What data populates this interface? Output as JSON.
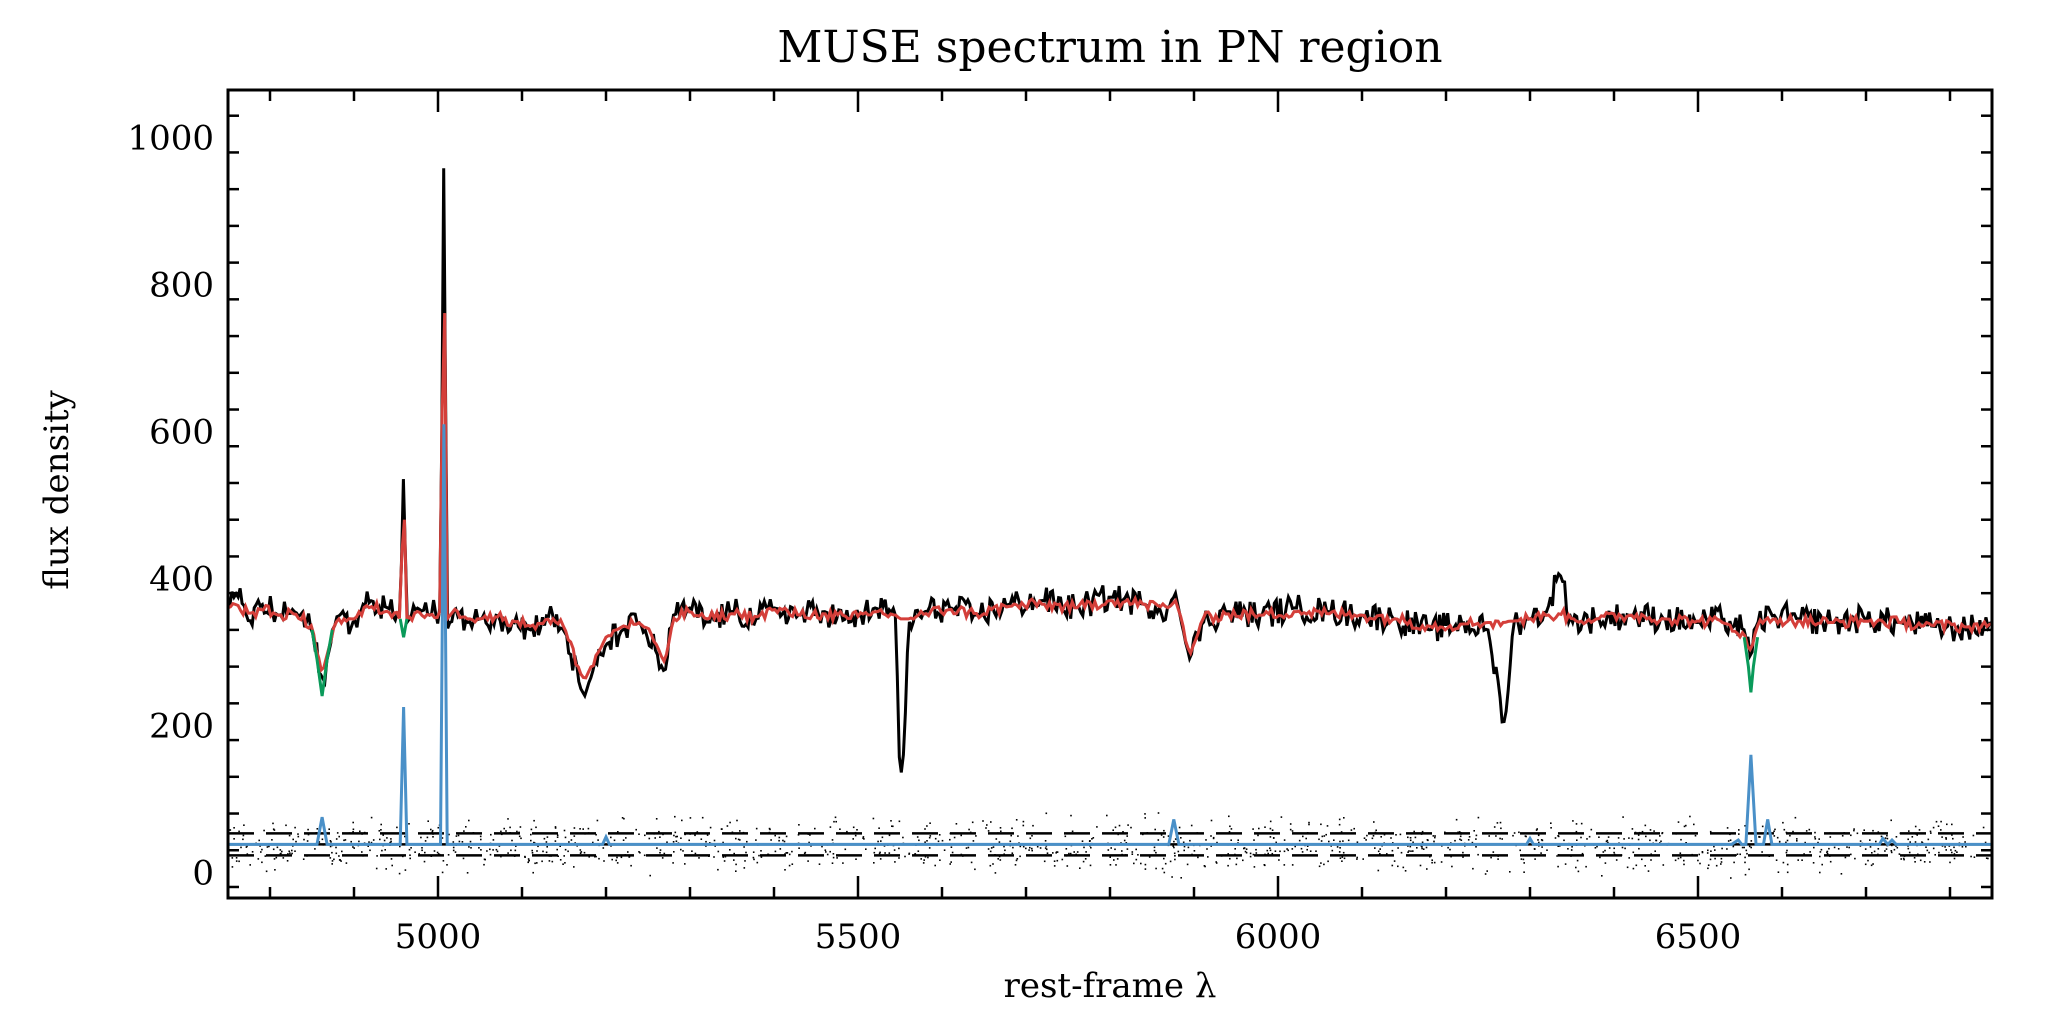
{
  "chart_data": {
    "type": "line",
    "title": "MUSE spectrum in PN region",
    "xlabel": "rest-frame λ",
    "ylabel": "flux density",
    "xlim": [
      4750,
      6850
    ],
    "ylim": [
      -35,
      1065
    ],
    "x_ticks": [
      5000,
      5500,
      6000,
      6500
    ],
    "x_tick_labels": [
      "5000",
      "5500",
      "6000",
      "6500"
    ],
    "y_ticks": [
      0,
      200,
      400,
      600,
      800,
      1000
    ],
    "y_tick_labels": [
      "0",
      "200",
      "400",
      "600",
      "800",
      "1000"
    ],
    "grid": false,
    "legend": "none",
    "colors": {
      "observed": "#000000",
      "model": "#d43f3a",
      "gas_absorption_component": "#0a9a5a",
      "emission_lines": "#4a90c8",
      "residuals": "#000000"
    },
    "series": [
      {
        "key": "observed",
        "style": "black histogram",
        "x": [
          4750,
          4760,
          4775,
          4790,
          4810,
          4830,
          4850,
          4862,
          4870,
          4880,
          4900,
          4920,
          4940,
          4955,
          4959,
          4963,
          4975,
          4990,
          5003,
          5007,
          5011,
          5020,
          5035,
          5050,
          5070,
          5090,
          5110,
          5130,
          5150,
          5170,
          5175,
          5180,
          5200,
          5220,
          5240,
          5260,
          5270,
          5280,
          5300,
          5320,
          5350,
          5380,
          5400,
          5430,
          5460,
          5490,
          5520,
          5545,
          5550,
          5555,
          5560,
          5580,
          5610,
          5640,
          5680,
          5720,
          5760,
          5800,
          5840,
          5870,
          5878,
          5885,
          5895,
          5910,
          5940,
          5980,
          6020,
          6060,
          6100,
          6140,
          6180,
          6220,
          6250,
          6270,
          6275,
          6280,
          6300,
          6320,
          6335,
          6350,
          6380,
          6420,
          6460,
          6500,
          6530,
          6555,
          6563,
          6570,
          6590,
          6620,
          6660,
          6700,
          6740,
          6780,
          6820,
          6850
        ],
        "y": [
          360,
          380,
          340,
          365,
          350,
          355,
          330,
          260,
          300,
          350,
          340,
          370,
          360,
          350,
          545,
          340,
          360,
          350,
          360,
          990,
          330,
          360,
          340,
          345,
          350,
          340,
          330,
          350,
          330,
          250,
          240,
          260,
          310,
          330,
          340,
          300,
          270,
          350,
          360,
          340,
          355,
          345,
          360,
          350,
          355,
          340,
          360,
          350,
          120,
          170,
          340,
          355,
          360,
          350,
          365,
          370,
          360,
          375,
          365,
          360,
          380,
          340,
          290,
          340,
          355,
          350,
          360,
          355,
          350,
          345,
          330,
          340,
          330,
          200,
          260,
          340,
          345,
          355,
          410,
          340,
          345,
          350,
          345,
          340,
          345,
          330,
          290,
          340,
          350,
          345,
          340,
          345,
          340,
          335,
          330,
          340
        ]
      },
      {
        "key": "model",
        "style": "red line",
        "x": [
          4750,
          4760,
          4775,
          4790,
          4810,
          4830,
          4850,
          4862,
          4870,
          4880,
          4900,
          4920,
          4940,
          4955,
          4959,
          4963,
          4975,
          4990,
          5003,
          5007,
          5011,
          5020,
          5035,
          5050,
          5070,
          5090,
          5110,
          5130,
          5150,
          5170,
          5175,
          5180,
          5200,
          5220,
          5240,
          5260,
          5270,
          5280,
          5300,
          5320,
          5350,
          5380,
          5400,
          5430,
          5460,
          5490,
          5520,
          5545,
          5550,
          5555,
          5560,
          5580,
          5610,
          5640,
          5680,
          5720,
          5760,
          5800,
          5840,
          5870,
          5878,
          5885,
          5895,
          5910,
          5940,
          5980,
          6020,
          6060,
          6100,
          6140,
          6180,
          6220,
          6250,
          6270,
          6275,
          6280,
          6300,
          6320,
          6335,
          6350,
          6380,
          6420,
          6460,
          6500,
          6530,
          6555,
          6563,
          6570,
          6590,
          6620,
          6660,
          6700,
          6740,
          6780,
          6820,
          6850
        ],
        "y": [
          360,
          365,
          352,
          358,
          350,
          352,
          335,
          270,
          305,
          345,
          345,
          362,
          355,
          345,
          525,
          345,
          355,
          350,
          355,
          900,
          345,
          358,
          345,
          345,
          348,
          342,
          335,
          345,
          335,
          270,
          262,
          275,
          320,
          335,
          340,
          310,
          285,
          345,
          355,
          345,
          352,
          348,
          358,
          350,
          352,
          345,
          355,
          350,
          345,
          345,
          345,
          352,
          358,
          352,
          362,
          365,
          360,
          370,
          365,
          360,
          370,
          345,
          295,
          345,
          352,
          350,
          355,
          352,
          350,
          345,
          335,
          338,
          340,
          340,
          342,
          342,
          345,
          350,
          352,
          345,
          345,
          350,
          345,
          342,
          340,
          325,
          300,
          335,
          345,
          342,
          340,
          342,
          340,
          336,
          334,
          338
        ]
      },
      {
        "key": "gas_absorption_component",
        "style": "green line at Balmer/MgI absorption",
        "x": [
          4850,
          4856,
          4862,
          4868,
          4874,
          4955,
          4959,
          4963,
          6555,
          6560,
          6563,
          6566,
          6571
        ],
        "y": [
          330,
          290,
          240,
          290,
          330,
          345,
          320,
          345,
          320,
          280,
          245,
          280,
          320
        ]
      },
      {
        "key": "emission_lines",
        "style": "blue emission-line model",
        "x": [
          4750,
          4850,
          4856,
          4862,
          4868,
          4874,
          4945,
          4955,
          4959,
          4963,
          4970,
          4995,
          5003,
          5007,
          5011,
          5018,
          5190,
          5196,
          5200,
          5204,
          5210,
          5865,
          5870,
          5876,
          5882,
          5888,
          6290,
          6296,
          6300,
          6304,
          6310,
          6540,
          6548,
          6552,
          6557,
          6563,
          6569,
          6574,
          6578,
          6583,
          6588,
          6596,
          6710,
          6716,
          6720,
          6726,
          6731,
          6736,
          6850
        ],
        "y": [
          38,
          38,
          38,
          75,
          38,
          38,
          38,
          38,
          225,
          38,
          38,
          38,
          38,
          610,
          38,
          38,
          38,
          38,
          48,
          38,
          38,
          38,
          38,
          72,
          38,
          38,
          38,
          38,
          46,
          38,
          38,
          38,
          44,
          38,
          38,
          160,
          38,
          38,
          38,
          72,
          38,
          38,
          38,
          38,
          46,
          38,
          44,
          38,
          38
        ]
      }
    ],
    "reference_lines": [
      {
        "style": "solid",
        "y": 38
      },
      {
        "style": "dashed",
        "y": 53
      },
      {
        "style": "dashed",
        "y": 23
      }
    ],
    "residuals": {
      "style": "scattered black dots around the noise band",
      "x_range": [
        4750,
        6850
      ],
      "y_range": [
        5,
        100
      ]
    }
  }
}
